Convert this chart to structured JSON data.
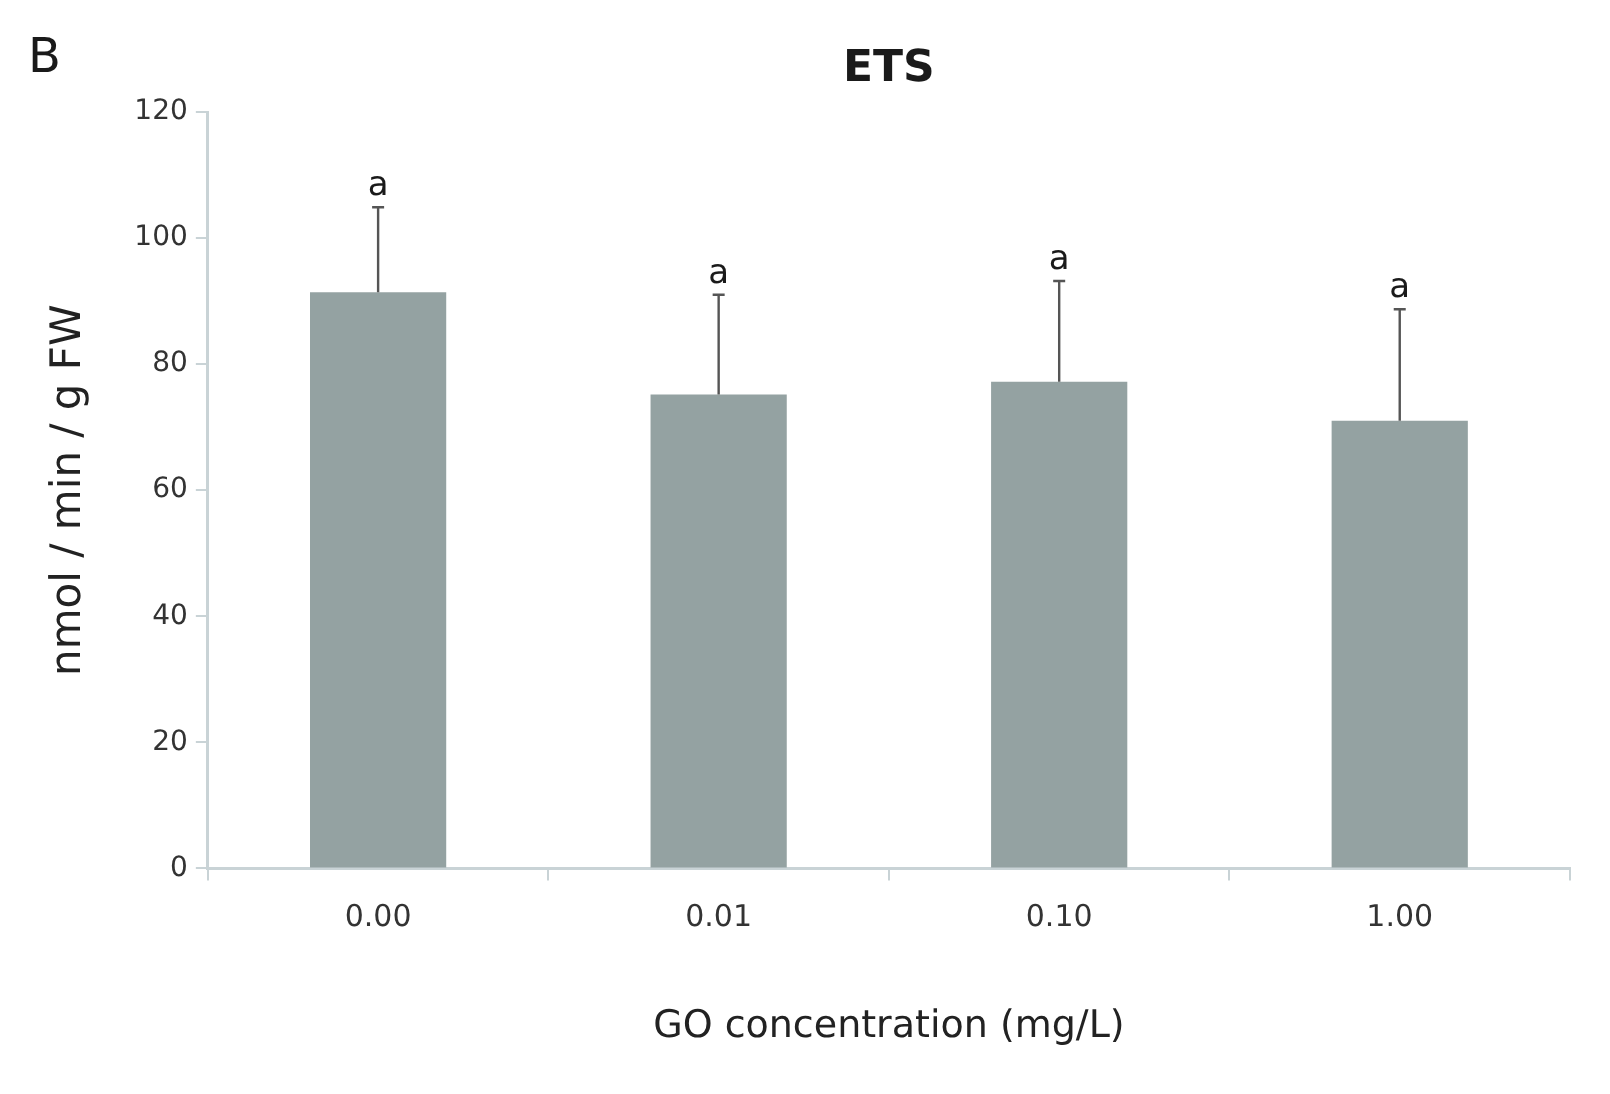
{
  "chart_data": {
    "type": "bar",
    "title": "ETS",
    "xlabel": "GO concentration (mg/L)",
    "ylabel": "nmol / min / g FW",
    "categories": [
      "0.00",
      "0.01",
      "0.10",
      "1.00"
    ],
    "values": [
      91.4,
      75.2,
      77.2,
      71.0
    ],
    "errors": [
      [
        91.4,
        104.9
      ],
      [
        75.2,
        91.0
      ],
      [
        77.2,
        93.2
      ],
      [
        71.0,
        88.7
      ]
    ],
    "color": "#94a2a2",
    "ylim": [
      0,
      120
    ],
    "yticks": [
      0,
      20,
      40,
      60,
      80,
      100,
      120
    ],
    "annotations": [
      "B",
      {
        "text": "a",
        "x": "0.00",
        "y": 104.9
      },
      {
        "text": "a",
        "x": "0.01",
        "y": 91.0
      },
      {
        "text": "a",
        "x": "0.10",
        "y": 93.2
      },
      {
        "text": "a",
        "x": "1.00",
        "y": 88.7
      }
    ]
  }
}
